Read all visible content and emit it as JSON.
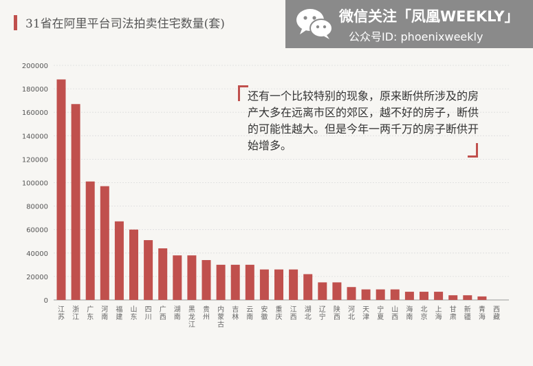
{
  "title": "31省在阿里平台司法拍卖住宅数量(套)",
  "watermark": {
    "line1": "微信关注「凤凰WEEKLY」",
    "line2": "公众号ID:  phoenixweekly",
    "icon": "wechat-icon"
  },
  "annotation": "还有一个比较特别的现象，原来断供所涉及的房产大多在远离市区的郊区，越不好的房子，断供的可能性越大。但是今年一两千万的房子断供开始增多。",
  "colors": {
    "bar": "#c0504d",
    "accent": "#c0504d",
    "watermark_bg": "#8a8a8a"
  },
  "chart_data": {
    "type": "bar",
    "title": "31省在阿里平台司法拍卖住宅数量(套)",
    "xlabel": "",
    "ylabel": "",
    "ylim": [
      0,
      200000
    ],
    "yticks": [
      "0",
      "20000",
      "40000",
      "60000",
      "80000",
      "100000",
      "120000",
      "140000",
      "160000",
      "180000",
      "200000"
    ],
    "grid": true,
    "categories": [
      "江苏",
      "浙江",
      "广东",
      "河南",
      "福建",
      "山东",
      "四川",
      "广西",
      "湖南",
      "黑龙江",
      "贵州",
      "内蒙古",
      "吉林",
      "云南",
      "安徽",
      "重庆",
      "江西",
      "湖北",
      "辽宁",
      "陕西",
      "河北",
      "天津",
      "宁夏",
      "山西",
      "海南",
      "北京",
      "上海",
      "甘肃",
      "新疆",
      "青海",
      "西藏"
    ],
    "values": [
      188000,
      167000,
      101000,
      97000,
      67000,
      60000,
      51000,
      44000,
      38000,
      38000,
      34000,
      30000,
      30000,
      30000,
      26000,
      26000,
      26000,
      22000,
      15000,
      15000,
      11000,
      9000,
      9000,
      9000,
      7000,
      7000,
      7000,
      4000,
      4000,
      3000,
      0
    ]
  }
}
